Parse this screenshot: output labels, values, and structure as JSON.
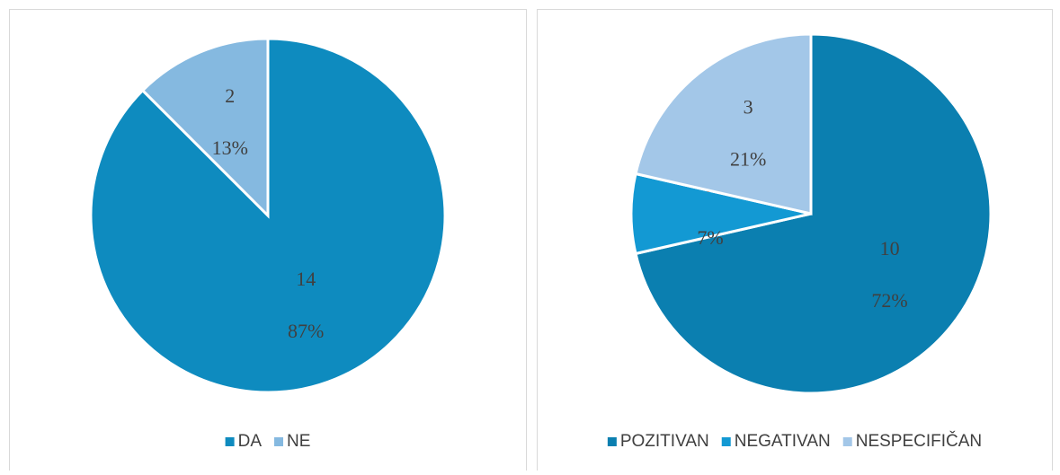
{
  "chart_data": [
    {
      "type": "pie",
      "categories": [
        "DA",
        "NE"
      ],
      "values": [
        14,
        2
      ],
      "percent_labels": [
        "87%",
        "13%"
      ],
      "colors": [
        "#0e8bbf",
        "#85b9e0"
      ],
      "legend": "bottom"
    },
    {
      "type": "pie",
      "categories": [
        "POZITIVAN",
        "NEGATIVAN",
        "NESPECIFIČAN"
      ],
      "values": [
        10,
        1,
        3
      ],
      "percent_labels": [
        "72%",
        "7%",
        "21%"
      ],
      "colors": [
        "#0b7fb0",
        "#1399d3",
        "#a3c7e8"
      ],
      "legend": "bottom"
    }
  ]
}
